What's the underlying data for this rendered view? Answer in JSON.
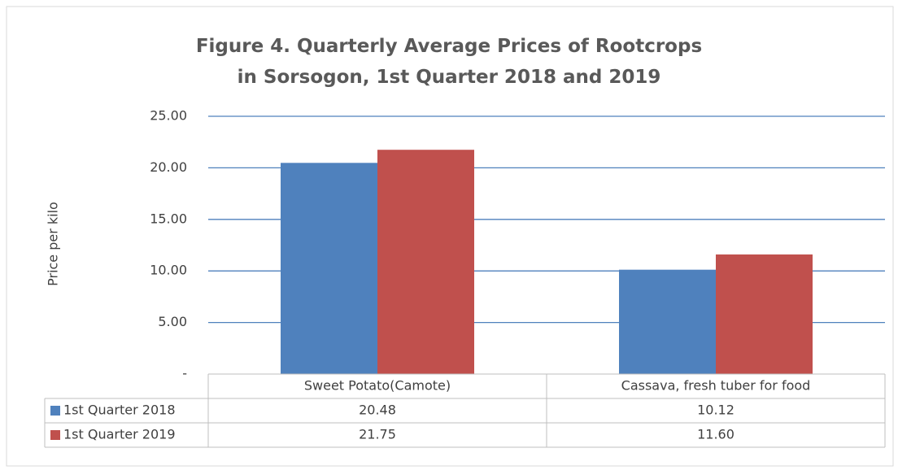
{
  "chart_data": {
    "type": "bar",
    "title": "Figure 4. Quarterly Average Prices of Rootcrops in Sorsogon, 1st Quarter 2018 and 2019",
    "y_label": "Price per kilo",
    "categories": [
      "Sweet Potato(Camote)",
      "Cassava, fresh tuber for food"
    ],
    "series": [
      {
        "name": "1st Quarter 2018",
        "color": "#4f81bd",
        "values": [
          20.48,
          10.12
        ],
        "value_labels": [
          "20.48",
          "10.12"
        ]
      },
      {
        "name": "1st Quarter 2019",
        "color": "#c0504d",
        "values": [
          21.75,
          11.6
        ],
        "value_labels": [
          "21.75",
          "11.60"
        ]
      }
    ],
    "ylim": [
      0,
      25
    ],
    "yticks": [
      {
        "value": 0,
        "label": "-"
      },
      {
        "value": 5,
        "label": "5.00"
      },
      {
        "value": 10,
        "label": "10.00"
      },
      {
        "value": 15,
        "label": "15.00"
      },
      {
        "value": 20,
        "label": "20.00"
      },
      {
        "value": 25,
        "label": "25.00"
      }
    ],
    "grid": true
  }
}
